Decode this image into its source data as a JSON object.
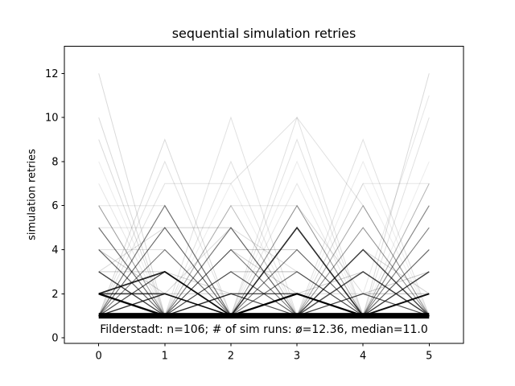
{
  "chart_data": {
    "type": "line",
    "title": "sequential simulation retries",
    "xlabel": "",
    "ylabel": "simulation retries",
    "annotation": "Filderstadt: n=106; # of sim runs: ø=12.36, median=11.0",
    "stats": {
      "location": "Filderstadt",
      "n": 106,
      "sim_runs_mean": 12.36,
      "sim_runs_median": 11.0
    },
    "x": [
      0,
      1,
      2,
      3,
      4,
      5
    ],
    "xticks": [
      0,
      1,
      2,
      3,
      4,
      5
    ],
    "yticks": [
      0,
      2,
      4,
      6,
      8,
      10,
      12
    ],
    "xlim": [
      -0.52,
      5.52
    ],
    "ylim": [
      -0.26,
      13.23
    ],
    "grid": false,
    "legend": false,
    "line_color": "#000000",
    "axis_color": "#000000",
    "text_color": "#000000",
    "background": "#ffffff",
    "series": [
      {
        "values": [
          1,
          1,
          1,
          1,
          1,
          1
        ],
        "alpha": 1.0,
        "width": 7
      },
      {
        "values": [
          2,
          1,
          1,
          1,
          1,
          1
        ],
        "alpha": 0.95,
        "width": 2.4
      },
      {
        "values": [
          2,
          2,
          1,
          1,
          1,
          1
        ],
        "alpha": 0.7,
        "width": 1.6
      },
      {
        "values": [
          2,
          3,
          1,
          1,
          1,
          1
        ],
        "alpha": 0.85,
        "width": 1.8
      },
      {
        "values": [
          1,
          2,
          1,
          1,
          1,
          1
        ],
        "alpha": 0.7,
        "width": 1.4
      },
      {
        "values": [
          1,
          1,
          1,
          2,
          1,
          1
        ],
        "alpha": 1.0,
        "width": 2.2
      },
      {
        "values": [
          1,
          1,
          1,
          5,
          1,
          1
        ],
        "alpha": 0.8,
        "width": 1.6
      },
      {
        "values": [
          1,
          1,
          1,
          1,
          1,
          2
        ],
        "alpha": 0.9,
        "width": 2.0
      },
      {
        "values": [
          1,
          1,
          1,
          1,
          1,
          3
        ],
        "alpha": 0.7,
        "width": 1.4
      },
      {
        "values": [
          1,
          1,
          1,
          1,
          3,
          1
        ],
        "alpha": 0.7,
        "width": 1.5
      },
      {
        "values": [
          1,
          1,
          1,
          1,
          4,
          1
        ],
        "alpha": 0.6,
        "width": 1.5
      },
      {
        "values": [
          3,
          1,
          1,
          1,
          1,
          1
        ],
        "alpha": 0.6,
        "width": 1.4
      },
      {
        "values": [
          1,
          1,
          1,
          1,
          1,
          4
        ],
        "alpha": 0.5,
        "width": 1.2
      },
      {
        "values": [
          4,
          1,
          1,
          1,
          1,
          1
        ],
        "alpha": 0.5,
        "width": 1.2
      },
      {
        "values": [
          1,
          1,
          2,
          1,
          1,
          1
        ],
        "alpha": 0.5,
        "width": 1.2
      },
      {
        "values": [
          1,
          3,
          1,
          1,
          1,
          1
        ],
        "alpha": 0.55,
        "width": 1.3
      },
      {
        "values": [
          1,
          1,
          1,
          3,
          1,
          1
        ],
        "alpha": 0.45,
        "width": 1.2
      },
      {
        "values": [
          1,
          1,
          3,
          1,
          1,
          1
        ],
        "alpha": 0.5,
        "width": 1.2
      },
      {
        "values": [
          1,
          1,
          1,
          1,
          2,
          1
        ],
        "alpha": 0.45,
        "width": 1.2
      },
      {
        "values": [
          1,
          1,
          1,
          4,
          1,
          1
        ],
        "alpha": 0.35,
        "width": 1
      },
      {
        "values": [
          5,
          1,
          1,
          1,
          1,
          1
        ],
        "alpha": 0.5,
        "width": 1.2
      },
      {
        "values": [
          1,
          1,
          1,
          1,
          5,
          1
        ],
        "alpha": 0.3,
        "width": 1
      },
      {
        "values": [
          6,
          1,
          1,
          1,
          1,
          1
        ],
        "alpha": 0.3,
        "width": 1
      },
      {
        "values": [
          1,
          4,
          1,
          1,
          1,
          1
        ],
        "alpha": 0.4,
        "width": 1.1
      },
      {
        "values": [
          1,
          5,
          1,
          1,
          1,
          1
        ],
        "alpha": 0.4,
        "width": 1.1
      },
      {
        "values": [
          1,
          1,
          1,
          6,
          1,
          1
        ],
        "alpha": 0.35,
        "width": 1
      },
      {
        "values": [
          1,
          1,
          5,
          1,
          1,
          1
        ],
        "alpha": 0.45,
        "width": 1.2
      },
      {
        "values": [
          1,
          1,
          6,
          1,
          1,
          1
        ],
        "alpha": 0.25,
        "width": 1
      },
      {
        "values": [
          1,
          1,
          1,
          1,
          6,
          1
        ],
        "alpha": 0.25,
        "width": 1
      },
      {
        "values": [
          1,
          1,
          1,
          1,
          1,
          5
        ],
        "alpha": 0.35,
        "width": 1
      },
      {
        "values": [
          1,
          1,
          1,
          1,
          1,
          6
        ],
        "alpha": 0.4,
        "width": 1.2
      },
      {
        "values": [
          1,
          1,
          4,
          1,
          1,
          1
        ],
        "alpha": 0.3,
        "width": 1
      },
      {
        "values": [
          1,
          6,
          1,
          1,
          1,
          1
        ],
        "alpha": 0.45,
        "width": 1.2
      },
      {
        "values": [
          1,
          1,
          1,
          1,
          1,
          7
        ],
        "alpha": 0.3,
        "width": 1
      },
      {
        "values": [
          1,
          1,
          2,
          2,
          1,
          1
        ],
        "alpha": 0.6,
        "width": 1.4
      },
      {
        "values": [
          1,
          1,
          3,
          3,
          1,
          1
        ],
        "alpha": 0.25,
        "width": 1
      },
      {
        "values": [
          3,
          3,
          1,
          1,
          1,
          1
        ],
        "alpha": 0.2,
        "width": 1
      },
      {
        "values": [
          4,
          4,
          1,
          1,
          1,
          1
        ],
        "alpha": 0.12,
        "width": 1
      },
      {
        "values": [
          1,
          5,
          5,
          1,
          1,
          1
        ],
        "alpha": 0.2,
        "width": 1
      },
      {
        "values": [
          1,
          1,
          4,
          4,
          1,
          1
        ],
        "alpha": 0.2,
        "width": 1
      },
      {
        "values": [
          6,
          6,
          1,
          1,
          1,
          1
        ],
        "alpha": 0.1,
        "width": 1
      },
      {
        "values": [
          1,
          1,
          1,
          1,
          7,
          7
        ],
        "alpha": 0.1,
        "width": 1
      },
      {
        "values": [
          5,
          5,
          1,
          1,
          1,
          1
        ],
        "alpha": 0.12,
        "width": 1
      },
      {
        "values": [
          1,
          1,
          6,
          6,
          1,
          1
        ],
        "alpha": 0.1,
        "width": 1
      },
      {
        "values": [
          4,
          1,
          4,
          1,
          1,
          4
        ],
        "alpha": 0.2,
        "width": 1
      },
      {
        "values": [
          1,
          4,
          1,
          4,
          1,
          1
        ],
        "alpha": 0.2,
        "width": 1
      },
      {
        "values": [
          1,
          1,
          4,
          1,
          4,
          1
        ],
        "alpha": 0.18,
        "width": 1
      },
      {
        "values": [
          5,
          1,
          1,
          4,
          1,
          5
        ],
        "alpha": 0.15,
        "width": 1
      },
      {
        "values": [
          1,
          5,
          1,
          1,
          4,
          1
        ],
        "alpha": 0.18,
        "width": 1
      },
      {
        "values": [
          2,
          1,
          5,
          1,
          1,
          5
        ],
        "alpha": 0.15,
        "width": 1
      },
      {
        "values": [
          1,
          2,
          1,
          5,
          1,
          2
        ],
        "alpha": 0.18,
        "width": 1
      },
      {
        "values": [
          3,
          1,
          1,
          1,
          5,
          1
        ],
        "alpha": 0.2,
        "width": 1
      },
      {
        "values": [
          6,
          1,
          2,
          1,
          6,
          1
        ],
        "alpha": 0.12,
        "width": 1
      },
      {
        "values": [
          1,
          6,
          1,
          2,
          1,
          6
        ],
        "alpha": 0.12,
        "width": 1
      },
      {
        "values": [
          2,
          2,
          1,
          1,
          2,
          2
        ],
        "alpha": 0.25,
        "width": 1
      },
      {
        "values": [
          1,
          2,
          2,
          1,
          1,
          2
        ],
        "alpha": 0.2,
        "width": 1
      },
      {
        "values": [
          3,
          1,
          2,
          2,
          1,
          1
        ],
        "alpha": 0.25,
        "width": 1
      },
      {
        "values": [
          1,
          3,
          1,
          1,
          2,
          3
        ],
        "alpha": 0.2,
        "width": 1
      },
      {
        "values": [
          2,
          1,
          3,
          1,
          2,
          1
        ],
        "alpha": 0.25,
        "width": 1
      },
      {
        "values": [
          1,
          1,
          1,
          2,
          3,
          1
        ],
        "alpha": 0.2,
        "width": 1
      },
      {
        "values": [
          2,
          1,
          4,
          2,
          1,
          3
        ],
        "alpha": 0.2,
        "width": 1
      },
      {
        "values": [
          1,
          3,
          2,
          1,
          4,
          2
        ],
        "alpha": 0.18,
        "width": 1
      },
      {
        "values": [
          4,
          2,
          1,
          3,
          1,
          2
        ],
        "alpha": 0.2,
        "width": 1
      },
      {
        "values": [
          3,
          5,
          1,
          2,
          2,
          1
        ],
        "alpha": 0.15,
        "width": 1
      },
      {
        "values": [
          1,
          2,
          5,
          3,
          1,
          2
        ],
        "alpha": 0.15,
        "width": 1
      },
      {
        "values": [
          2,
          1,
          1,
          6,
          2,
          1
        ],
        "alpha": 0.15,
        "width": 1
      },
      {
        "values": [
          12,
          1,
          1,
          1,
          1,
          1
        ],
        "alpha": 0.15,
        "width": 1
      },
      {
        "values": [
          10,
          1,
          1,
          1,
          1,
          1
        ],
        "alpha": 0.15,
        "width": 1
      },
      {
        "values": [
          9,
          1,
          1,
          1,
          1,
          1
        ],
        "alpha": 0.15,
        "width": 1
      },
      {
        "values": [
          1,
          9,
          1,
          1,
          1,
          1
        ],
        "alpha": 0.15,
        "width": 1
      },
      {
        "values": [
          1,
          8,
          1,
          1,
          1,
          1
        ],
        "alpha": 0.12,
        "width": 1
      },
      {
        "values": [
          1,
          1,
          10,
          1,
          1,
          1
        ],
        "alpha": 0.12,
        "width": 1
      },
      {
        "values": [
          1,
          1,
          8,
          1,
          1,
          1
        ],
        "alpha": 0.12,
        "width": 1
      },
      {
        "values": [
          1,
          1,
          1,
          10,
          1,
          1
        ],
        "alpha": 0.12,
        "width": 1
      },
      {
        "values": [
          1,
          1,
          1,
          9,
          1,
          1
        ],
        "alpha": 0.12,
        "width": 1
      },
      {
        "values": [
          1,
          1,
          1,
          1,
          9,
          1
        ],
        "alpha": 0.12,
        "width": 1
      },
      {
        "values": [
          1,
          1,
          1,
          1,
          1,
          12
        ],
        "alpha": 0.15,
        "width": 1
      },
      {
        "values": [
          1,
          1,
          1,
          1,
          1,
          10
        ],
        "alpha": 0.12,
        "width": 1
      },
      {
        "values": [
          1,
          1,
          1,
          1,
          2,
          11
        ],
        "alpha": 0.1,
        "width": 1
      },
      {
        "values": [
          1,
          7,
          7,
          10,
          6,
          1
        ],
        "alpha": 0.12,
        "width": 1
      },
      {
        "values": [
          7,
          1,
          1,
          7,
          1,
          1
        ],
        "alpha": 0.1,
        "width": 1
      },
      {
        "values": [
          1,
          1,
          7,
          1,
          7,
          1
        ],
        "alpha": 0.08,
        "width": 1
      },
      {
        "values": [
          1,
          1,
          1,
          8,
          1,
          8
        ],
        "alpha": 0.08,
        "width": 1
      },
      {
        "values": [
          8,
          1,
          1,
          1,
          8,
          1
        ],
        "alpha": 0.08,
        "width": 1
      }
    ]
  }
}
